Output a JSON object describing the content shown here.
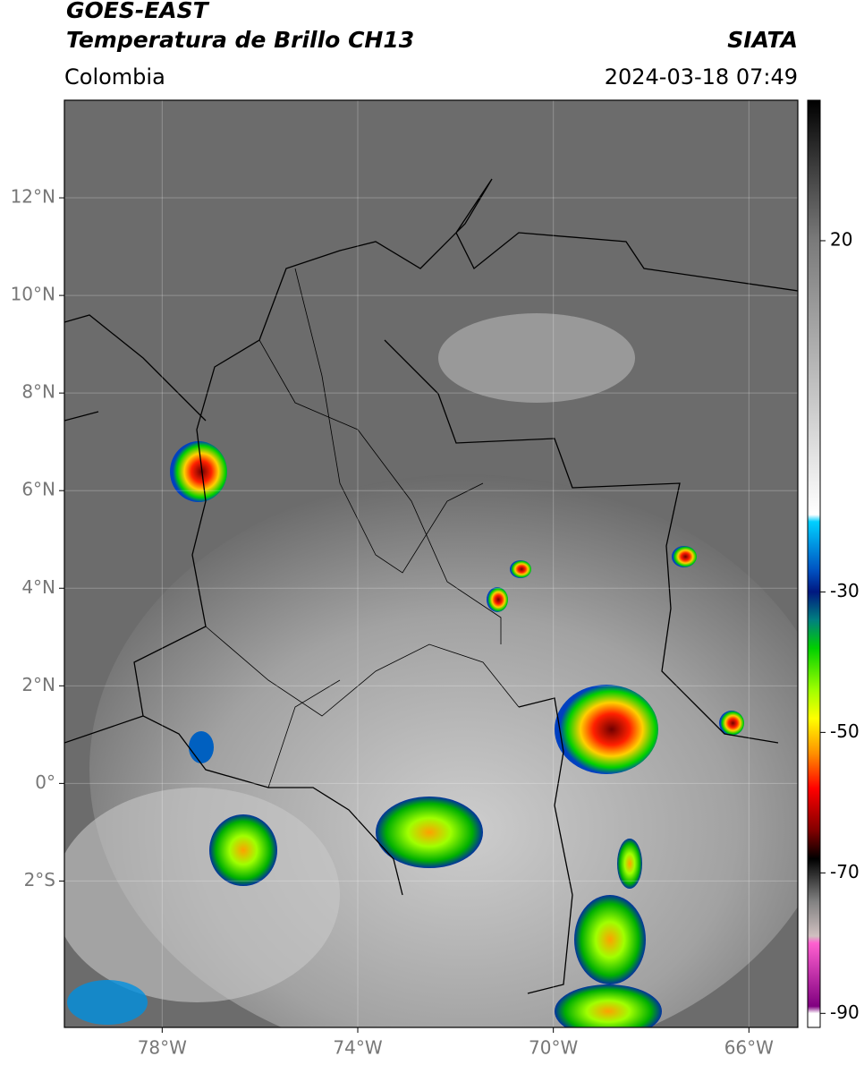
{
  "header": {
    "title": "GOES-EAST",
    "subtitle": "Temperatura de Brillo CH13",
    "source": "SIATA",
    "region": "Colombia",
    "datetime": "2024-03-18 07:49"
  },
  "map": {
    "xlim": [
      -80,
      -65
    ],
    "ylim": [
      -5,
      14
    ],
    "xticks": [
      {
        "value": -78,
        "label": "78°W"
      },
      {
        "value": -74,
        "label": "74°W"
      },
      {
        "value": -70,
        "label": "70°W"
      },
      {
        "value": -66,
        "label": "66°W"
      }
    ],
    "yticks": [
      {
        "value": 12,
        "label": "12°N"
      },
      {
        "value": 10,
        "label": "10°N"
      },
      {
        "value": 8,
        "label": "8°N"
      },
      {
        "value": 6,
        "label": "6°N"
      },
      {
        "value": 4,
        "label": "4°N"
      },
      {
        "value": 2,
        "label": "2°N"
      },
      {
        "value": 0,
        "label": "0°"
      },
      {
        "value": -2,
        "label": "2°S"
      }
    ],
    "grid": true
  },
  "colorbar": {
    "lim": [
      -92,
      40
    ],
    "ticks": [
      20,
      -30,
      -50,
      -70,
      -90
    ],
    "colormap": [
      {
        "value": 40,
        "color": "#000000"
      },
      {
        "value": 30,
        "color": "#404040"
      },
      {
        "value": 20,
        "color": "#7a7a7a"
      },
      {
        "value": -19,
        "color": "#ffffff"
      },
      {
        "value": -20,
        "color": "#00d0ff"
      },
      {
        "value": -27,
        "color": "#0050c0"
      },
      {
        "value": -30,
        "color": "#001880"
      },
      {
        "value": -34,
        "color": "#008080"
      },
      {
        "value": -38,
        "color": "#00d000"
      },
      {
        "value": -44,
        "color": "#a0ff00"
      },
      {
        "value": -48,
        "color": "#ffff00"
      },
      {
        "value": -53,
        "color": "#ff9000"
      },
      {
        "value": -58,
        "color": "#ff0000"
      },
      {
        "value": -64,
        "color": "#800000"
      },
      {
        "value": -68,
        "color": "#000000"
      },
      {
        "value": -74,
        "color": "#808080"
      },
      {
        "value": -79,
        "color": "#d0c0c0"
      },
      {
        "value": -80,
        "color": "#ff60d0"
      },
      {
        "value": -89,
        "color": "#800080"
      },
      {
        "value": -90,
        "color": "#ffffff"
      },
      {
        "value": -92,
        "color": "#ffffff"
      }
    ]
  }
}
